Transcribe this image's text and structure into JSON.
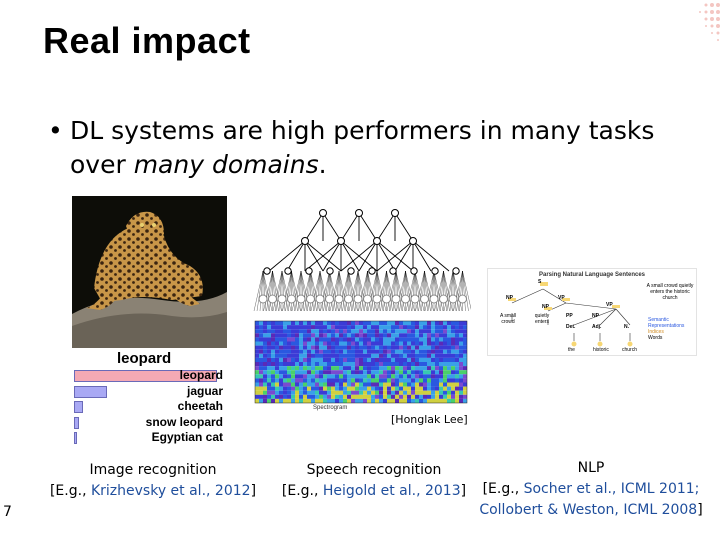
{
  "slide": {
    "title": "Real impact",
    "bullet": {
      "prefix": "DL systems are high performers in many tasks over ",
      "emphasis": "many domains",
      "suffix": "."
    },
    "page_number": "7"
  },
  "image_panel": {
    "chart_title": "leopard",
    "predictions": [
      {
        "label": "leopard",
        "score": 0.95,
        "color": "#f4a9b4"
      },
      {
        "label": "jaguar",
        "score": 0.22,
        "color": "#a9a9f4"
      },
      {
        "label": "cheetah",
        "score": 0.06,
        "color": "#a9a9f4"
      },
      {
        "label": "snow leopard",
        "score": 0.03,
        "color": "#a9a9f4"
      },
      {
        "label": "Egyptian cat",
        "score": 0.02,
        "color": "#a9a9f4"
      }
    ],
    "caption_line1": "Image recognition",
    "caption_line2_open": "[E.g., ",
    "caption_cite": "Krizhevsky et al., 2012",
    "caption_line2_close": "]"
  },
  "speech_panel": {
    "spectrogram_label": "Spectrogram",
    "credit": "[Honglak Lee]",
    "caption_line1": "Speech recognition",
    "caption_line2_open": "[E.g., ",
    "caption_cite": "Heigold et al., 2013",
    "caption_line2_close": "]"
  },
  "nlp_panel": {
    "figure_title": "Parsing Natural Language Sentences",
    "tree_labels": [
      "S",
      "NP",
      "VP",
      "NP",
      "VP",
      "PP",
      "NP",
      "Det.",
      "Adj.",
      "N."
    ],
    "phrases": [
      "A small crowd",
      "quietly enters",
      "the historic church"
    ],
    "words": [
      "the",
      "historic",
      "church"
    ],
    "right_text": "A small crowd quietly enters the historic church",
    "legend": [
      "Semantic",
      "Representations",
      "Indices",
      "Words"
    ],
    "caption_line1": "NLP",
    "caption_line2_open": "[E.g., ",
    "caption_cite_1": "Socher et al., ICML 2011",
    "caption_line2_sep": ";",
    "caption_cite_2": "Collobert & Weston, ICML 2008",
    "caption_line3_close": "]"
  },
  "colors": {
    "citation": "#1f4e9c",
    "corner_dots": "#f4c6c2"
  }
}
